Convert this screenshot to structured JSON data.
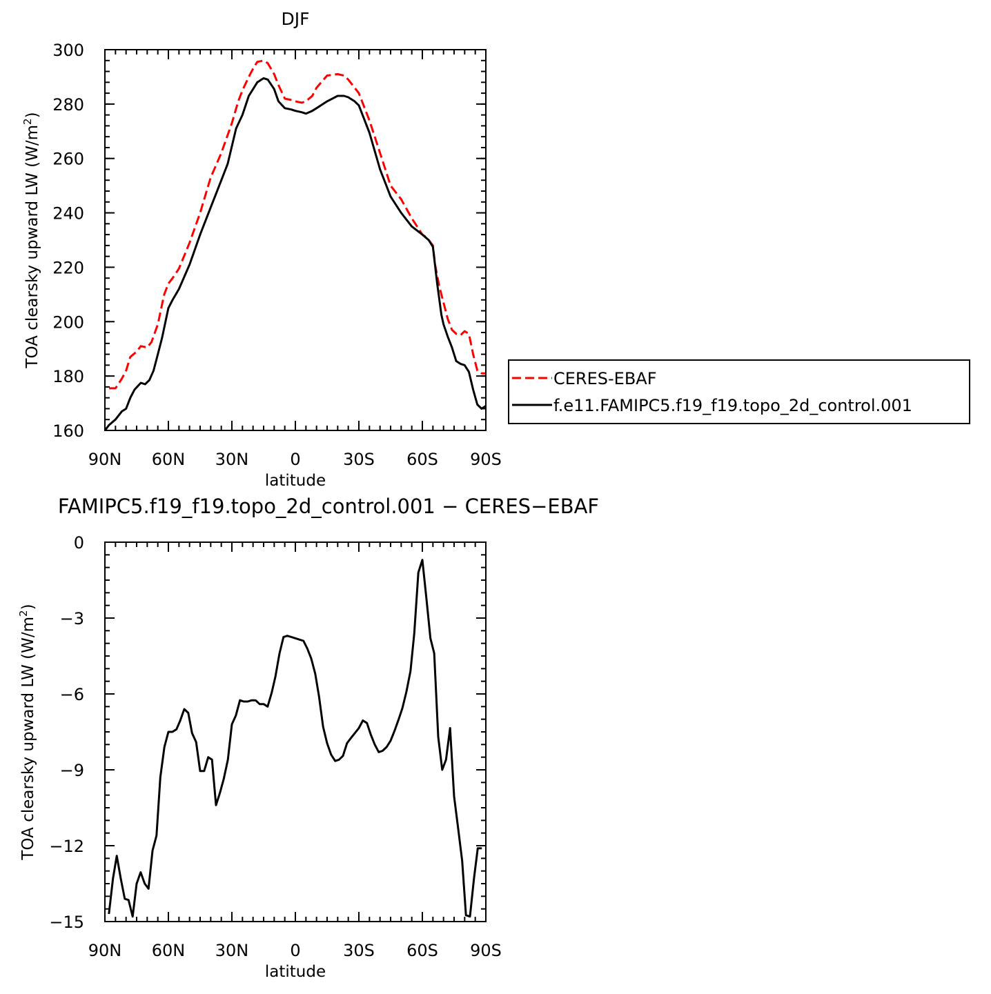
{
  "chart_data": [
    {
      "type": "line",
      "title": "DJF",
      "xlabel": "latitude",
      "ylabel": "TOA clearsky upward LW (W/m²)",
      "ylabel_parts": [
        "TOA clearsky upward LW (W/m",
        "2",
        ")"
      ],
      "xlim": [
        90,
        -90
      ],
      "ylim": [
        160,
        300
      ],
      "x_ticks": [
        {
          "value": 90,
          "label": "90N"
        },
        {
          "value": 60,
          "label": "60N"
        },
        {
          "value": 30,
          "label": "30N"
        },
        {
          "value": 0,
          "label": "0"
        },
        {
          "value": -30,
          "label": "30S"
        },
        {
          "value": -60,
          "label": "60S"
        },
        {
          "value": -90,
          "label": "90S"
        }
      ],
      "x_minor_step": 5,
      "y_ticks": [
        160,
        180,
        200,
        220,
        240,
        260,
        280,
        300
      ],
      "y_minor_step": 4,
      "grid": false,
      "legend": "right",
      "series": [
        {
          "name": "CERES-EBAF",
          "color": "#ff0000",
          "dash": "dashed",
          "x": [
            88,
            85,
            82,
            80,
            78,
            75,
            73,
            70,
            68,
            65,
            62,
            60,
            58,
            55,
            50,
            45,
            40,
            35,
            30,
            27,
            25,
            22,
            20,
            18,
            15,
            13,
            10,
            8,
            5,
            2,
            0,
            -3,
            -5,
            -8,
            -10,
            -15,
            -20,
            -23,
            -25,
            -30,
            -35,
            -40,
            -45,
            -50,
            -55,
            -60,
            -62,
            -65,
            -66,
            -68,
            -70,
            -72,
            -74,
            -76,
            -78,
            -80,
            -82,
            -84,
            -86,
            -88,
            -90
          ],
          "y": [
            175.5,
            175.5,
            179,
            182,
            187,
            189,
            191,
            190.5,
            192.5,
            199,
            210,
            214,
            216,
            219.5,
            229,
            240,
            253,
            262,
            273,
            281,
            285,
            290,
            293,
            295.5,
            296,
            295,
            291,
            287,
            282,
            281.5,
            281,
            280.5,
            281,
            283,
            286,
            290.5,
            291,
            290.5,
            289,
            284,
            274,
            262,
            250,
            245,
            238,
            232,
            231,
            228,
            221,
            213,
            207,
            201,
            197,
            195.5,
            195,
            196.5,
            195.5,
            188,
            182,
            181,
            181
          ]
        },
        {
          "name": "f.e11.FAMIPC5.f19_f19.topo_2d_control.001",
          "color": "#000000",
          "dash": "solid",
          "x": [
            90,
            88,
            85,
            82,
            80,
            78,
            76,
            73,
            71,
            69,
            67,
            65,
            63,
            60,
            58,
            55,
            50,
            45,
            40,
            35,
            32,
            28,
            25,
            22,
            20,
            18,
            15,
            13,
            10,
            8,
            5,
            2,
            0,
            -3,
            -5,
            -8,
            -10,
            -15,
            -20,
            -23,
            -25,
            -28,
            -30,
            -35,
            -40,
            -45,
            -50,
            -55,
            -60,
            -63,
            -65,
            -67,
            -69,
            -70,
            -72,
            -74,
            -76,
            -78,
            -80,
            -82,
            -84,
            -86,
            -88,
            -90
          ],
          "y": [
            160,
            162,
            164,
            167,
            168,
            172,
            175,
            177.5,
            177,
            178.5,
            182,
            188,
            194,
            205,
            208,
            212,
            221,
            232,
            242,
            252,
            258,
            271,
            276,
            283,
            285.5,
            288,
            289.5,
            289,
            285.5,
            281,
            278.5,
            278,
            277.5,
            277,
            276.5,
            277.5,
            278.5,
            281,
            283,
            283,
            282.5,
            281,
            279.5,
            269.5,
            256,
            246,
            240,
            235,
            232,
            230,
            227.5,
            214,
            202.5,
            199,
            194.5,
            190.5,
            185.5,
            184.5,
            184,
            181.5,
            175,
            169.5,
            168,
            169
          ]
        }
      ]
    },
    {
      "type": "line",
      "title": "FAMIPC5.f19_f19.topo_2d_control.001 − CERES−EBAF",
      "xlabel": "latitude",
      "ylabel": "TOA clearsky upward LW (W/m²)",
      "ylabel_parts": [
        "TOA clearsky upward LW (W/m",
        "2",
        ")"
      ],
      "xlim": [
        90,
        -90
      ],
      "ylim": [
        -15,
        0
      ],
      "x_ticks": [
        {
          "value": 90,
          "label": "90N"
        },
        {
          "value": 60,
          "label": "60N"
        },
        {
          "value": 30,
          "label": "30N"
        },
        {
          "value": 0,
          "label": "0"
        },
        {
          "value": -30,
          "label": "30S"
        },
        {
          "value": -60,
          "label": "60S"
        },
        {
          "value": -90,
          "label": "90S"
        }
      ],
      "x_minor_step": 5,
      "y_ticks": [
        -15,
        -12,
        -9,
        -6,
        -3,
        0
      ],
      "y_minor_step": 0.5,
      "grid": false,
      "series": [
        {
          "name": "",
          "color": "#000000",
          "dash": "solid",
          "x": [
            88.1,
            86.2,
            84.4,
            82.5,
            80.6,
            78.8,
            76.9,
            75.0,
            73.1,
            71.2,
            69.4,
            67.5,
            65.6,
            63.8,
            61.9,
            60.0,
            58.1,
            56.2,
            54.4,
            52.5,
            50.6,
            48.8,
            46.9,
            45.0,
            43.1,
            41.2,
            39.4,
            37.5,
            35.6,
            33.8,
            31.9,
            30.0,
            28.1,
            26.2,
            24.4,
            22.5,
            20.6,
            18.8,
            16.9,
            15.0,
            13.1,
            11.2,
            9.4,
            7.5,
            5.6,
            3.8,
            1.9,
            0.0,
            -1.9,
            -3.8,
            -5.6,
            -7.5,
            -9.4,
            -11.2,
            -13.1,
            -15.0,
            -16.9,
            -18.8,
            -20.6,
            -22.5,
            -24.4,
            -26.2,
            -28.1,
            -30.0,
            -31.9,
            -33.8,
            -35.6,
            -37.5,
            -39.4,
            -41.2,
            -43.1,
            -45.0,
            -46.9,
            -48.8,
            -50.6,
            -52.5,
            -54.4,
            -56.2,
            -58.1,
            -60.0,
            -61.9,
            -63.8,
            -65.6,
            -67.5,
            -69.4,
            -71.2,
            -73.1,
            -75.0,
            -76.9,
            -78.8,
            -80.6,
            -82.5,
            -84.4,
            -86.2,
            -88.1
          ],
          "y": [
            -14.7,
            -13.3,
            -12.4,
            -13.3,
            -14.1,
            -14.15,
            -14.8,
            -13.5,
            -13.05,
            -13.5,
            -13.7,
            -12.2,
            -11.6,
            -9.3,
            -8.1,
            -7.5,
            -7.5,
            -7.4,
            -7.05,
            -6.6,
            -6.75,
            -7.55,
            -7.9,
            -9.05,
            -9.05,
            -8.5,
            -8.6,
            -10.4,
            -9.9,
            -9.35,
            -8.6,
            -7.2,
            -6.85,
            -6.25,
            -6.3,
            -6.3,
            -6.25,
            -6.25,
            -6.4,
            -6.4,
            -6.5,
            -5.95,
            -5.3,
            -4.4,
            -3.75,
            -3.7,
            -3.75,
            -3.8,
            -3.85,
            -3.9,
            -4.2,
            -4.6,
            -5.2,
            -6.1,
            -7.3,
            -7.95,
            -8.4,
            -8.65,
            -8.6,
            -8.45,
            -7.95,
            -7.75,
            -7.55,
            -7.35,
            -7.05,
            -7.15,
            -7.6,
            -8.0,
            -8.3,
            -8.25,
            -8.1,
            -7.85,
            -7.45,
            -7.0,
            -6.55,
            -5.9,
            -5.1,
            -3.6,
            -1.2,
            -0.7,
            -2.2,
            -3.8,
            -4.4,
            -7.7,
            -9.0,
            -8.6,
            -7.35,
            -10.05,
            -11.3,
            -12.6,
            -14.75,
            -14.8,
            -13.3,
            -12.1,
            -12.1
          ]
        }
      ]
    }
  ]
}
